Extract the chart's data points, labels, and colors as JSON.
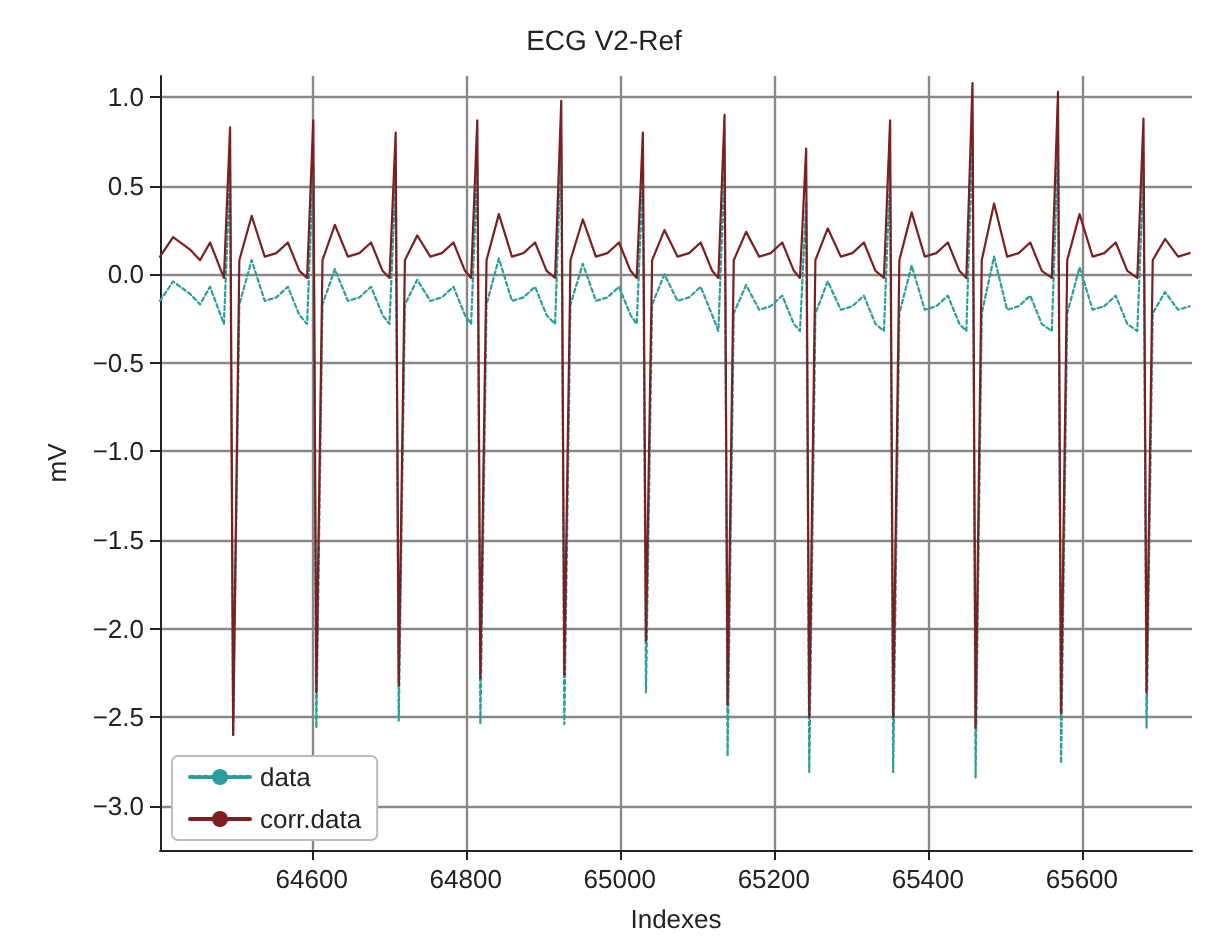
{
  "chart_data": {
    "type": "line",
    "title": "ECG V2-Ref",
    "xlabel": "Indexes",
    "ylabel": "mV",
    "x": [
      64403,
      64420,
      64442,
      64455,
      64468,
      64486,
      64494,
      64498,
      64506,
      64522,
      64539,
      64554,
      64569,
      64584,
      64594,
      64602,
      64606,
      64614,
      64630,
      64647,
      64662,
      64677,
      64692,
      64701,
      64709,
      64713,
      64721,
      64737,
      64754,
      64769,
      64784,
      64799,
      64807,
      64815,
      64819,
      64827,
      64843,
      64860,
      64875,
      64890,
      64905,
      64916,
      64924,
      64928,
      64936,
      64952,
      64969,
      64984,
      64999,
      65014,
      65022,
      65030,
      65034,
      65042,
      65058,
      65075,
      65090,
      65105,
      65120,
      65128,
      65136,
      65140,
      65148,
      65164,
      65181,
      65196,
      65211,
      65226,
      65234,
      65242,
      65246,
      65254,
      65270,
      65287,
      65302,
      65317,
      65332,
      65343,
      65351,
      65355,
      65363,
      65379,
      65396,
      65411,
      65426,
      65441,
      65450,
      65458,
      65462,
      65470,
      65486,
      65503,
      65518,
      65533,
      65548,
      65561,
      65569,
      65573,
      65581,
      65597,
      65614,
      65629,
      65644,
      65659,
      65672,
      65680,
      65684,
      65692,
      65708,
      65725,
      65740
    ],
    "series": [
      {
        "name": "data",
        "color": "#2a9d9d",
        "line_style": "dotted",
        "values": [
          -0.15,
          -0.04,
          -0.11,
          -0.17,
          -0.07,
          -0.28,
          0.58,
          -2.6,
          -0.17,
          0.08,
          -0.15,
          -0.13,
          -0.07,
          -0.23,
          -0.28,
          0.62,
          -2.56,
          -0.17,
          0.03,
          -0.15,
          -0.13,
          -0.07,
          -0.23,
          -0.28,
          0.55,
          -2.52,
          -0.17,
          -0.03,
          -0.15,
          -0.13,
          -0.07,
          -0.23,
          -0.28,
          0.62,
          -2.54,
          -0.17,
          0.09,
          -0.15,
          -0.13,
          -0.07,
          -0.23,
          -0.28,
          0.73,
          -2.54,
          -0.17,
          0.06,
          -0.15,
          -0.13,
          -0.07,
          -0.23,
          -0.28,
          0.55,
          -2.36,
          -0.17,
          0.0,
          -0.15,
          -0.13,
          -0.07,
          -0.23,
          -0.32,
          0.6,
          -2.72,
          -0.22,
          -0.06,
          -0.2,
          -0.18,
          -0.12,
          -0.28,
          -0.32,
          0.41,
          -2.81,
          -0.22,
          -0.04,
          -0.2,
          -0.18,
          -0.12,
          -0.28,
          -0.32,
          0.57,
          -2.81,
          -0.22,
          0.05,
          -0.2,
          -0.18,
          -0.12,
          -0.28,
          -0.32,
          0.78,
          -2.84,
          -0.22,
          0.1,
          -0.2,
          -0.18,
          -0.12,
          -0.28,
          -0.32,
          0.73,
          -2.76,
          -0.22,
          0.04,
          -0.2,
          -0.18,
          -0.12,
          -0.28,
          -0.32,
          0.58,
          -2.56,
          -0.22,
          -0.1,
          -0.2,
          -0.18
        ]
      },
      {
        "name": "corr.data",
        "color": "#7b1f1f",
        "line_style": "solid",
        "values": [
          0.1,
          0.21,
          0.14,
          0.08,
          0.18,
          -0.02,
          0.83,
          -2.6,
          0.08,
          0.33,
          0.1,
          0.12,
          0.18,
          0.02,
          -0.02,
          0.87,
          -2.36,
          0.08,
          0.28,
          0.1,
          0.12,
          0.18,
          0.02,
          -0.02,
          0.8,
          -2.32,
          0.08,
          0.22,
          0.1,
          0.12,
          0.18,
          0.02,
          -0.02,
          0.87,
          -2.28,
          0.08,
          0.34,
          0.1,
          0.12,
          0.18,
          0.02,
          -0.02,
          0.98,
          -2.26,
          0.08,
          0.31,
          0.1,
          0.12,
          0.18,
          0.02,
          -0.02,
          0.8,
          -2.07,
          0.08,
          0.25,
          0.1,
          0.12,
          0.18,
          0.02,
          -0.02,
          0.9,
          -2.43,
          0.08,
          0.24,
          0.1,
          0.12,
          0.18,
          0.02,
          -0.02,
          0.71,
          -2.5,
          0.08,
          0.26,
          0.1,
          0.12,
          0.18,
          0.02,
          -0.02,
          0.87,
          -2.5,
          0.08,
          0.35,
          0.1,
          0.12,
          0.18,
          0.02,
          -0.02,
          1.08,
          -2.56,
          0.08,
          0.4,
          0.1,
          0.12,
          0.18,
          0.02,
          -0.02,
          1.03,
          -2.48,
          0.08,
          0.34,
          0.1,
          0.12,
          0.18,
          0.02,
          -0.02,
          0.88,
          -2.36,
          0.08,
          0.2,
          0.1,
          0.12
        ]
      }
    ],
    "xlim": [
      64403,
      65743
    ],
    "ylim": [
      -3.25,
      1.12
    ],
    "xticks": [
      64600,
      64800,
      65000,
      65200,
      65400,
      65600
    ],
    "yticks": [
      {
        "value": -3,
        "label": "−3.0"
      },
      {
        "value": -2.5,
        "label": "−2.5"
      },
      {
        "value": -2,
        "label": "−2.0"
      },
      {
        "value": -1.5,
        "label": "−1.5"
      },
      {
        "value": -1,
        "label": "−1.0"
      },
      {
        "value": -0.5,
        "label": "−0.5"
      },
      {
        "value": 0,
        "label": "0.0"
      },
      {
        "value": 0.5,
        "label": "0.5"
      },
      {
        "value": 1,
        "label": "1.0"
      }
    ],
    "grid": true,
    "legend": "bottom left",
    "marker": "none"
  }
}
